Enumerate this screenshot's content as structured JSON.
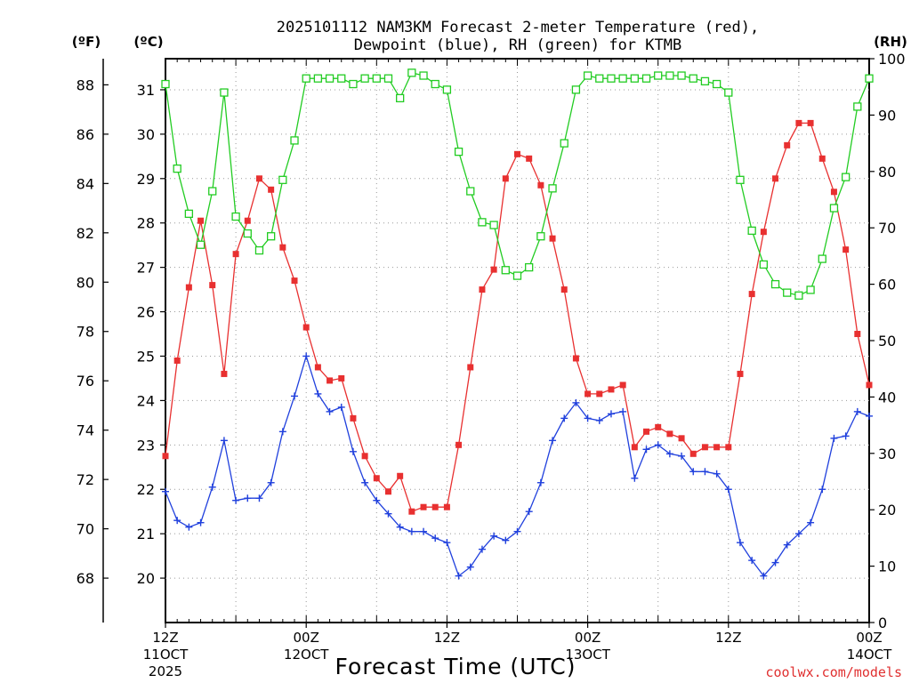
{
  "chart_data": {
    "type": "line",
    "title_line1": "2025101112 NAM3KM Forecast 2-meter Temperature (red),",
    "title_line2": "Dewpoint (blue), RH (green) for KTMB",
    "xlabel": "Forecast Time (UTC)",
    "credit": "coolwx.com/models",
    "units": {
      "fahrenheit": "(ºF)",
      "celsius": "(ºC)",
      "rh": "(RH)"
    },
    "celsius_range": [
      19,
      31.7
    ],
    "rh_range": [
      0,
      100
    ],
    "celsius_ticks": [
      "20",
      "21",
      "22",
      "23",
      "24",
      "25",
      "26",
      "27",
      "28",
      "29",
      "30",
      "31"
    ],
    "fahrenheit_ticks": [
      "68",
      "70",
      "72",
      "74",
      "76",
      "78",
      "80",
      "82",
      "84",
      "86",
      "88"
    ],
    "rh_ticks": [
      "0",
      "10",
      "20",
      "30",
      "40",
      "50",
      "60",
      "70",
      "80",
      "90",
      "100"
    ],
    "x_range_hours": [
      0,
      60
    ],
    "x_ticks": [
      {
        "hour": 0,
        "line1": "12Z",
        "line2": "11OCT",
        "line3": "2025"
      },
      {
        "hour": 12,
        "line1": "00Z",
        "line2": "12OCT",
        "line3": ""
      },
      {
        "hour": 24,
        "line1": "12Z",
        "line2": "",
        "line3": ""
      },
      {
        "hour": 36,
        "line1": "00Z",
        "line2": "13OCT",
        "line3": ""
      },
      {
        "hour": 48,
        "line1": "12Z",
        "line2": "",
        "line3": ""
      },
      {
        "hour": 60,
        "line1": "00Z",
        "line2": "14OCT",
        "line3": ""
      }
    ],
    "series": [
      {
        "name": "Temperature",
        "units": "C",
        "color": "#e83030",
        "marker": "filled-square",
        "x": [
          0,
          1,
          2,
          3,
          4,
          5,
          6,
          7,
          8,
          9,
          10,
          11,
          12,
          13,
          14,
          15,
          16,
          17,
          18,
          19,
          20,
          21,
          22,
          23,
          24,
          25,
          26,
          27,
          28,
          29,
          30,
          31,
          32,
          33,
          34,
          35,
          36,
          37,
          38,
          39,
          40,
          41,
          42,
          43,
          44,
          45,
          46,
          47,
          48,
          49,
          50,
          51,
          52,
          53,
          54,
          55,
          56,
          57,
          58,
          59,
          60
        ],
        "values": [
          22.75,
          24.9,
          26.55,
          28.05,
          26.6,
          24.6,
          27.3,
          28.05,
          29.0,
          28.75,
          27.45,
          26.7,
          25.65,
          24.75,
          24.45,
          24.5,
          23.6,
          22.75,
          22.25,
          21.95,
          22.3,
          21.5,
          21.6,
          21.6,
          21.6,
          23.0,
          24.75,
          26.5,
          26.95,
          29.0,
          29.55,
          29.45,
          28.85,
          27.65,
          26.5,
          24.95,
          24.15,
          24.15,
          24.25,
          24.35,
          22.95,
          23.3,
          23.4,
          23.25,
          23.15,
          22.8,
          22.95,
          22.95,
          22.95,
          24.6,
          26.4,
          27.8,
          29.0,
          29.75,
          30.25,
          30.25,
          29.45,
          28.7,
          27.4,
          25.5,
          24.35
        ]
      },
      {
        "name": "Dewpoint",
        "units": "C",
        "color": "#2040dd",
        "marker": "plus",
        "x": [
          0,
          1,
          2,
          3,
          4,
          5,
          6,
          7,
          8,
          9,
          10,
          11,
          12,
          13,
          14,
          15,
          16,
          17,
          18,
          19,
          20,
          21,
          22,
          23,
          24,
          25,
          26,
          27,
          28,
          29,
          30,
          31,
          32,
          33,
          34,
          35,
          36,
          37,
          38,
          39,
          40,
          41,
          42,
          43,
          44,
          45,
          46,
          47,
          48,
          49,
          50,
          51,
          52,
          53,
          54,
          55,
          56,
          57,
          58,
          59,
          60
        ],
        "values": [
          21.95,
          21.3,
          21.15,
          21.25,
          22.05,
          23.1,
          21.75,
          21.8,
          21.8,
          22.15,
          23.3,
          24.1,
          25.0,
          24.15,
          23.75,
          23.85,
          22.85,
          22.15,
          21.75,
          21.45,
          21.15,
          21.05,
          21.05,
          20.9,
          20.8,
          20.05,
          20.25,
          20.65,
          20.95,
          20.85,
          21.05,
          21.5,
          22.15,
          23.1,
          23.6,
          23.95,
          23.6,
          23.55,
          23.7,
          23.75,
          22.25,
          22.9,
          23.0,
          22.8,
          22.75,
          22.4,
          22.4,
          22.35,
          22.0,
          20.8,
          20.4,
          20.05,
          20.35,
          20.75,
          21.0,
          21.25,
          22.0,
          23.15,
          23.2,
          23.75,
          23.65
        ]
      },
      {
        "name": "RH",
        "units": "%",
        "color": "#22cc22",
        "marker": "open-square",
        "x": [
          0,
          1,
          2,
          3,
          4,
          5,
          6,
          7,
          8,
          9,
          10,
          11,
          12,
          13,
          14,
          15,
          16,
          17,
          18,
          19,
          20,
          21,
          22,
          23,
          24,
          25,
          26,
          27,
          28,
          29,
          30,
          31,
          32,
          33,
          34,
          35,
          36,
          37,
          38,
          39,
          40,
          41,
          42,
          43,
          44,
          45,
          46,
          47,
          48,
          49,
          50,
          51,
          52,
          53,
          54,
          55,
          56,
          57,
          58,
          59,
          60
        ],
        "values": [
          95.5,
          80.5,
          72.5,
          67.0,
          76.5,
          94.0,
          72.0,
          69.0,
          66.0,
          68.5,
          78.5,
          85.5,
          96.5,
          96.5,
          96.5,
          96.5,
          95.5,
          96.5,
          96.5,
          96.5,
          93.0,
          97.5,
          97.0,
          95.5,
          94.5,
          83.5,
          76.5,
          71.0,
          70.5,
          62.5,
          61.5,
          63.0,
          68.5,
          77.0,
          85.0,
          94.5,
          97.0,
          96.5,
          96.5,
          96.5,
          96.5,
          96.5,
          97.0,
          97.0,
          97.0,
          96.5,
          96.0,
          95.5,
          94.0,
          78.5,
          69.5,
          63.5,
          60.0,
          58.5,
          58.0,
          59.0,
          64.5,
          73.5,
          79.0,
          91.5,
          96.5
        ]
      }
    ]
  }
}
